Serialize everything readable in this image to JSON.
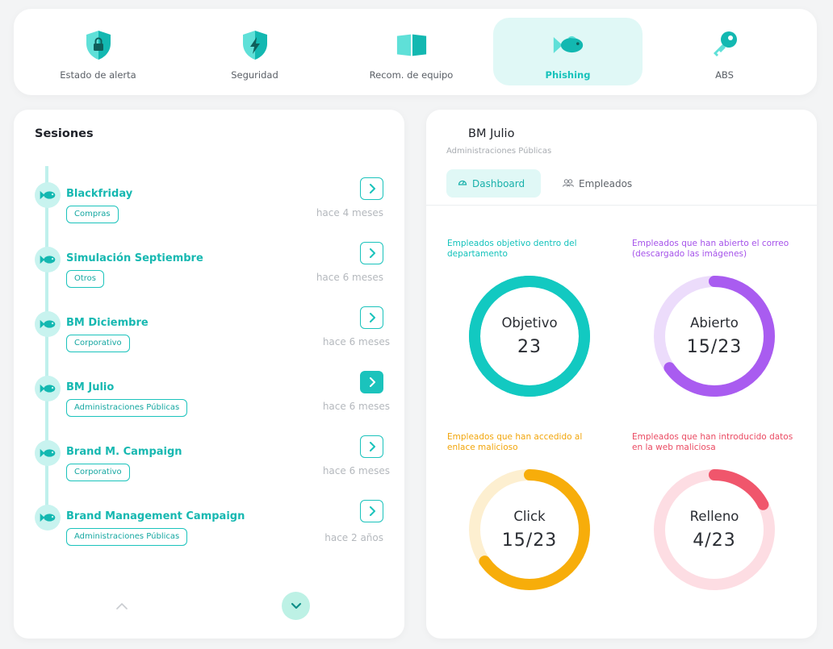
{
  "nav": {
    "items": [
      {
        "label": "Estado de alerta",
        "icon": "shield-lock-icon"
      },
      {
        "label": "Seguridad",
        "icon": "shield-bolt-icon"
      },
      {
        "label": "Recom. de equipo",
        "icon": "open-book-icon"
      },
      {
        "label": "Phishing",
        "icon": "fish-icon",
        "active": true
      },
      {
        "label": "ABS",
        "icon": "key-icon"
      }
    ]
  },
  "sessions": {
    "title": "Sesiones",
    "items": [
      {
        "name": "Blackfriday",
        "tag": "Compras",
        "time": "hace 4 meses"
      },
      {
        "name": "Simulación Septiembre",
        "tag": "Otros",
        "time": "hace 6 meses"
      },
      {
        "name": "BM Diciembre",
        "tag": "Corporativo",
        "time": "hace 6 meses"
      },
      {
        "name": "BM Julio",
        "tag": "Administraciones Públicas",
        "time": "hace 6 meses",
        "active": true
      },
      {
        "name": "Brand M. Campaign",
        "tag": "Corporativo",
        "time": "hace 6 meses"
      },
      {
        "name": "Brand Management Campaign",
        "tag": "Administraciones Públicas",
        "time": "hace 2 años"
      }
    ]
  },
  "detail": {
    "title": "BM Julio",
    "subtitle": "Administraciones Públicas",
    "tabs": [
      {
        "label": "Dashboard",
        "icon": "gauge-icon",
        "active": true
      },
      {
        "label": "Empleados",
        "icon": "people-icon"
      }
    ],
    "metrics": [
      {
        "label": "Empleados objetivo dentro del departamento",
        "name": "Objetivo",
        "value": "23",
        "fraction": 1.0,
        "color": "#12c9c1",
        "track": "#12c9c1"
      },
      {
        "label": "Empleados que han abierto el correo (descargado las imágenes)",
        "name": "Abierto",
        "value": "15/23",
        "fraction": 0.652,
        "color": "#a95cf0",
        "track": "#ecdcfb"
      },
      {
        "label": "Empleados que han accedido al enlace malicioso",
        "name": "Click",
        "value": "15/23",
        "fraction": 0.652,
        "color": "#f7ad0a",
        "track": "#fdefd0"
      },
      {
        "label": "Empleados que han introducido datos en la web maliciosa",
        "name": "Relleno",
        "value": "4/23",
        "fraction": 0.174,
        "color": "#f0566c",
        "track": "#fddde3"
      }
    ]
  }
}
